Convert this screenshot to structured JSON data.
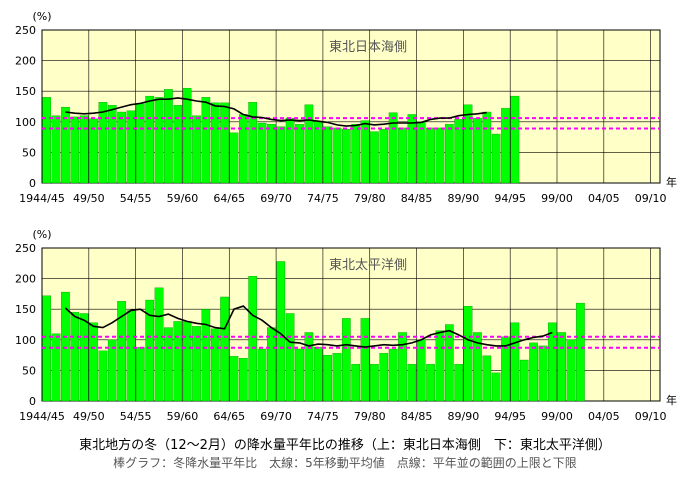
{
  "caption": "東北地方の冬（12〜2月）の降水量平年比の推移（上：東北日本海側　下：東北太平洋側）",
  "legend_note": "棒グラフ：冬降水量平年比　太線：5年移動平均値　点線：平年並の範囲の上限と下限",
  "colors": {
    "plot_bg": "#FFFFC8",
    "bar": "#00FF00",
    "bar_edge": "#008000",
    "moving_avg": "#000000",
    "normal_range": "#FF00FF",
    "grid": "#000000"
  },
  "chart_data": [
    {
      "type": "bar",
      "title": "東北日本海側",
      "ylabel": "(%)",
      "xlabel": "年",
      "ylim": [
        0,
        250
      ],
      "yticks": [
        0,
        50,
        100,
        150,
        200,
        250
      ],
      "xtick_labels": [
        "1944/45",
        "49/50",
        "54/55",
        "59/60",
        "64/65",
        "69/70",
        "74/75",
        "79/80",
        "84/85",
        "89/90",
        "94/95",
        "99/00",
        "04/05",
        "09/10"
      ],
      "normal_range": [
        106,
        89
      ],
      "values": [
        140,
        110,
        124,
        108,
        110,
        105,
        132,
        127,
        116,
        118,
        130,
        142,
        140,
        153,
        127,
        155,
        110,
        140,
        131,
        131,
        82,
        112,
        132,
        98,
        96,
        92,
        106,
        96,
        128,
        101,
        92,
        90,
        88,
        96,
        102,
        84,
        88,
        115,
        90,
        112,
        100,
        90,
        90,
        96,
        104,
        128,
        106,
        116,
        80,
        122,
        142
      ],
      "moving_avg_start_index": 2,
      "moving_avg": [
        116,
        114,
        113,
        114,
        116,
        120,
        124,
        128,
        130,
        134,
        137,
        137,
        139,
        137,
        134,
        132,
        126,
        125,
        121,
        112,
        108,
        107,
        104,
        102,
        103,
        102,
        103,
        101,
        99,
        95,
        93,
        94,
        97,
        95,
        96,
        98,
        98,
        98,
        99,
        104,
        106,
        106,
        110,
        112,
        113,
        115
      ]
    },
    {
      "type": "bar",
      "title": "東北太平洋側",
      "ylabel": "(%)",
      "xlabel": "年",
      "ylim": [
        0,
        250
      ],
      "yticks": [
        0,
        50,
        100,
        150,
        200,
        250
      ],
      "xtick_labels": [
        "1944/45",
        "49/50",
        "54/55",
        "59/60",
        "64/65",
        "69/70",
        "74/75",
        "79/80",
        "84/85",
        "89/90",
        "94/95",
        "99/00",
        "04/05",
        "09/10"
      ],
      "normal_range": [
        105,
        87
      ],
      "values": [
        172,
        110,
        178,
        145,
        143,
        128,
        82,
        100,
        163,
        148,
        88,
        165,
        185,
        120,
        130,
        130,
        122,
        150,
        118,
        170,
        73,
        70,
        204,
        85,
        120,
        228,
        143,
        85,
        112,
        88,
        75,
        78,
        135,
        60,
        135,
        60,
        78,
        85,
        112,
        60,
        100,
        60,
        115,
        125,
        60,
        155,
        112,
        74,
        46,
        105,
        128,
        67,
        95,
        90,
        128,
        112,
        100,
        160
      ],
      "moving_avg_start_index": 2,
      "moving_avg": [
        152,
        138,
        132,
        122,
        120,
        128,
        138,
        148,
        150,
        140,
        138,
        142,
        135,
        130,
        127,
        125,
        120,
        118,
        150,
        155,
        140,
        132,
        120,
        110,
        96,
        95,
        90,
        93,
        92,
        90,
        92,
        90,
        88,
        90,
        92,
        91,
        92,
        95,
        100,
        108,
        112,
        115,
        108,
        100,
        95,
        92,
        90,
        90,
        95,
        100,
        104,
        106,
        112
      ]
    }
  ]
}
